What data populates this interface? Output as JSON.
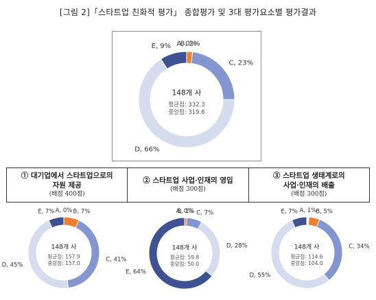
{
  "figure_title": "[그림 2]「스타트업 친화적 평가」 종합평가 및 3대 평가요소별 평가결과",
  "sections": [
    {
      "title": "① 대기업에서 스타트업으로의\n자원 제공",
      "subtitle": "(배점 400점)"
    },
    {
      "title": "② 스타트업 사업·인재의 영입",
      "subtitle": "(배점 300점)"
    },
    {
      "title": "③ 스타트업 생태계로의\n사업·인재의 배출",
      "subtitle": "(배점 300점)"
    }
  ],
  "colors": {
    "A": "#ffffff",
    "B": "#ef7f2e",
    "C": "#8496cf",
    "D": "#d5dcee",
    "E": "#3e5193"
  },
  "chart_data": [
    {
      "type": "pie",
      "donut": true,
      "center_label": "148개 사",
      "stats": [
        "평균점: 332.3",
        "중앙점: 319.6"
      ],
      "slices": [
        {
          "label": "A",
          "value": 0,
          "text": "A, 0%"
        },
        {
          "label": "B",
          "value": 2,
          "text": "B, 2%"
        },
        {
          "label": "C",
          "value": 23,
          "text": "C, 23%"
        },
        {
          "label": "D",
          "value": 66,
          "text": "D, 66%"
        },
        {
          "label": "E",
          "value": 9,
          "text": "E, 9%"
        }
      ]
    },
    {
      "type": "pie",
      "donut": true,
      "center_label": "148개 사",
      "stats": [
        "평균점: 157.9",
        "중앙점: 157.0"
      ],
      "slices": [
        {
          "label": "A",
          "value": 0,
          "text": "A, 0%"
        },
        {
          "label": "B",
          "value": 7,
          "text": "B, 7%"
        },
        {
          "label": "C",
          "value": 41,
          "text": "C, 41%"
        },
        {
          "label": "D",
          "value": 45,
          "text": "D, 45%"
        },
        {
          "label": "E",
          "value": 7,
          "text": "E, 7%"
        }
      ]
    },
    {
      "type": "pie",
      "donut": true,
      "center_label": "148개 사",
      "stats": [
        "평균점: 59.8",
        "중앙점: 50.0"
      ],
      "slices": [
        {
          "label": "A",
          "value": 0,
          "text": "A, 0%"
        },
        {
          "label": "B",
          "value": 1,
          "text": "B, 1%"
        },
        {
          "label": "C",
          "value": 7,
          "text": "C, 7%"
        },
        {
          "label": "D",
          "value": 28,
          "text": "D, 28%"
        },
        {
          "label": "E",
          "value": 64,
          "text": "E, 64%"
        }
      ]
    },
    {
      "type": "pie",
      "donut": true,
      "center_label": "148개 사",
      "stats": [
        "평균점: 114.6",
        "중앙점: 104.0"
      ],
      "slices": [
        {
          "label": "A",
          "value": 1,
          "text": "A, 1%"
        },
        {
          "label": "B",
          "value": 5,
          "text": "B, 5%"
        },
        {
          "label": "C",
          "value": 34,
          "text": "C, 34%"
        },
        {
          "label": "D",
          "value": 55,
          "text": "D, 55%"
        },
        {
          "label": "E",
          "value": 7,
          "text": "E, 7%"
        }
      ]
    }
  ]
}
